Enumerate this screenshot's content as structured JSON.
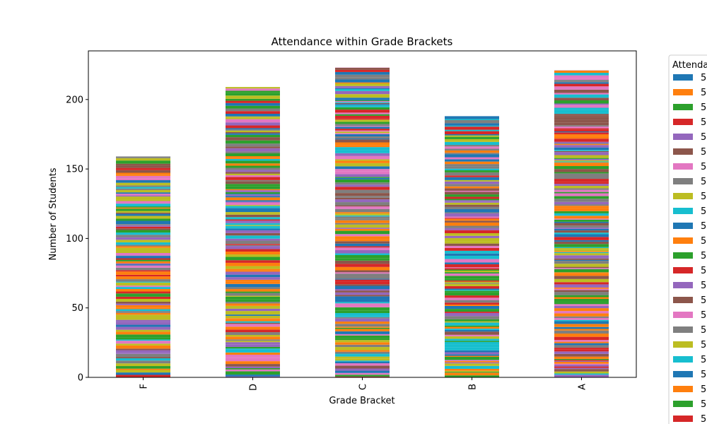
{
  "chart_data": {
    "type": "bar",
    "stacked": true,
    "title": "Attendance within Grade Brackets",
    "xlabel": "Grade Bracket",
    "ylabel": "Number of Students",
    "categories": [
      "F",
      "D",
      "C",
      "B",
      "A"
    ],
    "totals": [
      159,
      209,
      223,
      188,
      221
    ],
    "ylim": [
      0,
      235
    ],
    "yticks": [
      0,
      50,
      100,
      150,
      200
    ],
    "grid": false,
    "legend": {
      "title": "Attendance",
      "placement": "outside-right",
      "entries": [
        {
          "label": "5",
          "color": "#1f77b4"
        },
        {
          "label": "5",
          "color": "#ff7f0e"
        },
        {
          "label": "5",
          "color": "#2ca02c"
        },
        {
          "label": "5",
          "color": "#d62728"
        },
        {
          "label": "5",
          "color": "#9467bd"
        },
        {
          "label": "5",
          "color": "#8c564b"
        },
        {
          "label": "5",
          "color": "#e377c2"
        },
        {
          "label": "5",
          "color": "#7f7f7f"
        },
        {
          "label": "5",
          "color": "#bcbd22"
        },
        {
          "label": "5",
          "color": "#17becf"
        },
        {
          "label": "5",
          "color": "#1f77b4"
        },
        {
          "label": "5",
          "color": "#ff7f0e"
        },
        {
          "label": "5",
          "color": "#2ca02c"
        },
        {
          "label": "5",
          "color": "#d62728"
        },
        {
          "label": "5",
          "color": "#9467bd"
        },
        {
          "label": "5",
          "color": "#8c564b"
        },
        {
          "label": "5",
          "color": "#e377c2"
        },
        {
          "label": "5",
          "color": "#7f7f7f"
        },
        {
          "label": "5",
          "color": "#bcbd22"
        },
        {
          "label": "5",
          "color": "#17becf"
        },
        {
          "label": "5",
          "color": "#1f77b4"
        },
        {
          "label": "5",
          "color": "#ff7f0e"
        },
        {
          "label": "5",
          "color": "#2ca02c"
        },
        {
          "label": "5",
          "color": "#d62728"
        }
      ]
    },
    "palette": [
      "#1f77b4",
      "#ff7f0e",
      "#2ca02c",
      "#d62728",
      "#9467bd",
      "#8c564b",
      "#e377c2",
      "#7f7f7f",
      "#bcbd22",
      "#17becf"
    ]
  }
}
